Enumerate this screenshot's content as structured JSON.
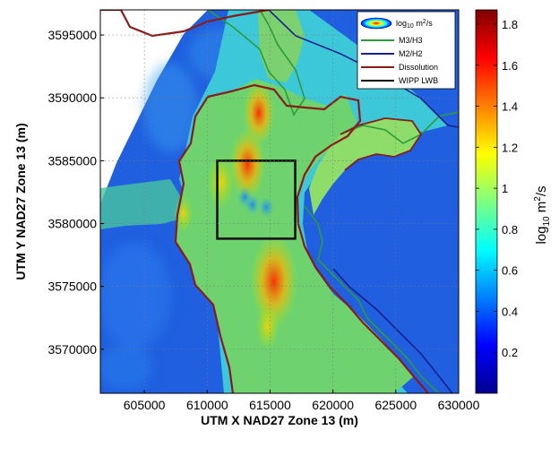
{
  "chart_data": {
    "type": "heatmap",
    "title": "",
    "xlabel": "UTM X NAD27 Zone 13 (m)",
    "ylabel": "UTM Y NAD27 Zone 13 (m)",
    "xlim": [
      601500,
      630000
    ],
    "ylim": [
      3566500,
      3597000
    ],
    "x_ticks": [
      605000,
      610000,
      615000,
      620000,
      625000,
      630000
    ],
    "x_tick_labels": [
      "605000",
      "610000",
      "615000",
      "620000",
      "625000",
      "630000"
    ],
    "y_ticks": [
      3570000,
      3575000,
      3580000,
      3585000,
      3590000,
      3595000
    ],
    "y_tick_labels": [
      "3570000",
      "3575000",
      "3580000",
      "3585000",
      "3590000",
      "3595000"
    ],
    "grid": true,
    "colorbar": {
      "title_base": "log",
      "title_sub": "10",
      "title_units": " m",
      "title_sup": "2",
      "title_tail": "/s",
      "range": [
        0,
        1.87
      ],
      "ticks": [
        0.2,
        0.4,
        0.6,
        0.8,
        1.0,
        1.2,
        1.4,
        1.6,
        1.8
      ],
      "tick_labels": [
        "0.2",
        "0.4",
        "0.6",
        "0.8",
        "1",
        "1.2",
        "1.4",
        "1.6",
        "1.8"
      ],
      "colormap": "jet"
    },
    "legend": {
      "position": "top-right",
      "entries": [
        {
          "label_base": "log",
          "label_sub": "10",
          "label_rest": " m",
          "label_sup": "2",
          "label_tail": "/s",
          "marker": "colormap-ellipse"
        },
        {
          "label": "M3/H3",
          "color": "#2e9b3a"
        },
        {
          "label": "M2/H2",
          "color": "#1a1f8c"
        },
        {
          "label": "Dissolution",
          "color": "#8b1a1a"
        },
        {
          "label": "WIPP LWB",
          "color": "#000000"
        }
      ]
    },
    "wipp_lwb": {
      "x": [
        610800,
        617000
      ],
      "y": [
        3578800,
        3585000
      ]
    },
    "high_zones": [
      {
        "x": 613200,
        "y": 3584700,
        "value": 1.5
      },
      {
        "x": 614100,
        "y": 3588800,
        "value": 1.4
      },
      {
        "x": 615300,
        "y": 3575400,
        "value": 1.75
      },
      {
        "x": 611100,
        "y": 3583300,
        "value": 1.3
      },
      {
        "x": 608100,
        "y": 3580800,
        "value": 1.1
      },
      {
        "x": 614800,
        "y": 3571800,
        "value": 1.2
      }
    ],
    "low_zones": [
      {
        "x": 613000,
        "y": 3582100,
        "value": 0.6
      },
      {
        "x": 614700,
        "y": 3581300,
        "value": 0.65
      },
      {
        "x": 613600,
        "y": 3581500,
        "value": 0.7
      }
    ]
  },
  "colors": {
    "background_low": "#1f5fe0",
    "moderate": "#6ed36e",
    "m3h3": "#2e9b3a",
    "m2h2": "#1a1f8c",
    "dissolution": "#8b1a1a",
    "lwb": "#000000"
  }
}
